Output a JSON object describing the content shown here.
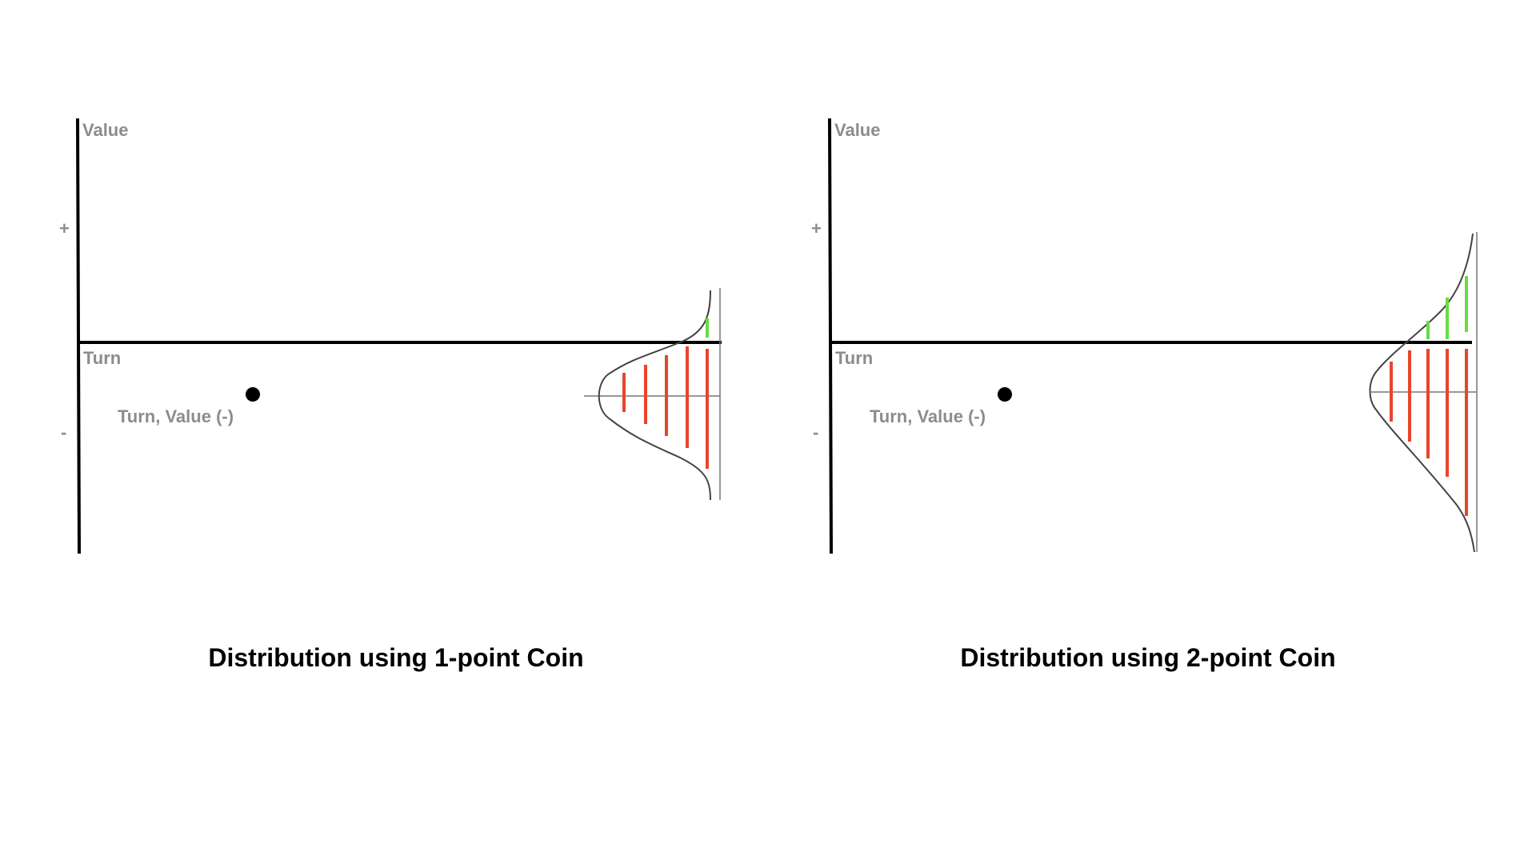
{
  "colors": {
    "axis": "#000000",
    "label": "#8c8c8c",
    "curve": "#444444",
    "negative_bar": "#e8452c",
    "positive_bar": "#66dd44",
    "point": "#000000"
  },
  "labels": {
    "y_axis": "Value",
    "x_axis": "Turn",
    "plus": "+",
    "minus": "-",
    "point": "Turn, Value (-)"
  },
  "panels": [
    {
      "caption": "Distribution using 1-point Coin",
      "negative_bar_count": 5,
      "positive_bar_count": 1
    },
    {
      "caption": "Distribution using 2-point Coin",
      "negative_bar_count": 5,
      "positive_bar_count": 3
    }
  ]
}
